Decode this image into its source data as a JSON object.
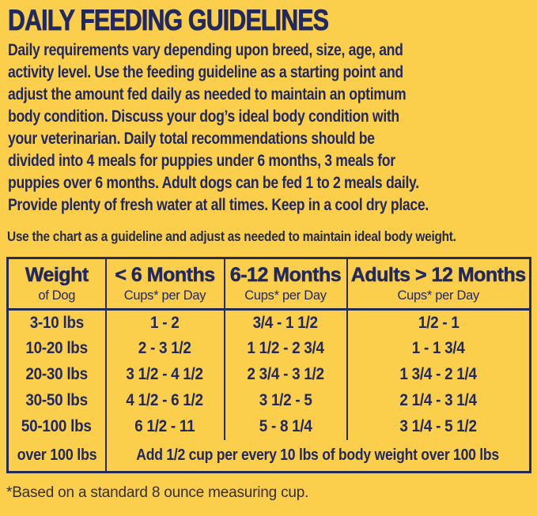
{
  "title": "DAILY FEEDING GUIDELINES",
  "intro": {
    "lines": [
      "Daily requirements vary depending upon breed, size, age, and",
      "activity level. Use the feeding guideline as a starting point and",
      "adjust the amount fed daily as needed to maintain an optimum",
      "body condition. Discuss your dog’s ideal body condition with",
      "your veterinarian. Daily total recommendations should be",
      "divided into 4 meals for puppies under 6 months, 3 meals for",
      "puppies over 6 months. Adult dogs can be fed 1 to 2 meals daily.",
      "Provide plenty of fresh water at all times. Keep in a cool dry place."
    ]
  },
  "note": "Use the chart as a guideline and adjust as needed to maintain ideal body weight.",
  "table": {
    "columns": [
      {
        "title": "Weight",
        "subtitle": "of Dog"
      },
      {
        "title": "< 6 Months",
        "subtitle": "Cups* per Day"
      },
      {
        "title": "6-12 Months",
        "subtitle": "Cups* per Day"
      },
      {
        "title": "Adults > 12 Months",
        "subtitle": "Cups* per Day"
      }
    ],
    "rows": [
      {
        "weight": "3-10 lbs",
        "under_6_months": "1 - 2",
        "months_6_12": "3/4 - 1 1/2",
        "adults_over_12": "1/2 - 1"
      },
      {
        "weight": "10-20 lbs",
        "under_6_months": "2 - 3 1/2",
        "months_6_12": "1 1/2 - 2 3/4",
        "adults_over_12": "1 - 1 3/4"
      },
      {
        "weight": "20-30 lbs",
        "under_6_months": "3 1/2 - 4 1/2",
        "months_6_12": "2 3/4 - 3 1/2",
        "adults_over_12": "1 3/4 - 2 1/4"
      },
      {
        "weight": "30-50 lbs",
        "under_6_months": "4 1/2 - 6 1/2",
        "months_6_12": "3 1/2 - 5",
        "adults_over_12": "2 1/4 - 3 1/4"
      },
      {
        "weight": "50-100 lbs",
        "under_6_months": "6 1/2 - 11",
        "months_6_12": "5 - 8 1/4",
        "adults_over_12": "3 1/4 - 5 1/2"
      }
    ],
    "over_100": {
      "weight": "over 100 lbs",
      "instruction": "Add 1/2 cup per every 10 lbs of body weight over 100 lbs"
    }
  },
  "footnote": "*Based on a standard 8 ounce measuring cup.",
  "colors": {
    "background": "#FBCE4C",
    "navy": "#22295F",
    "border": "#232C55",
    "note_text": "#262C42",
    "footnote_text": "#32302C"
  }
}
